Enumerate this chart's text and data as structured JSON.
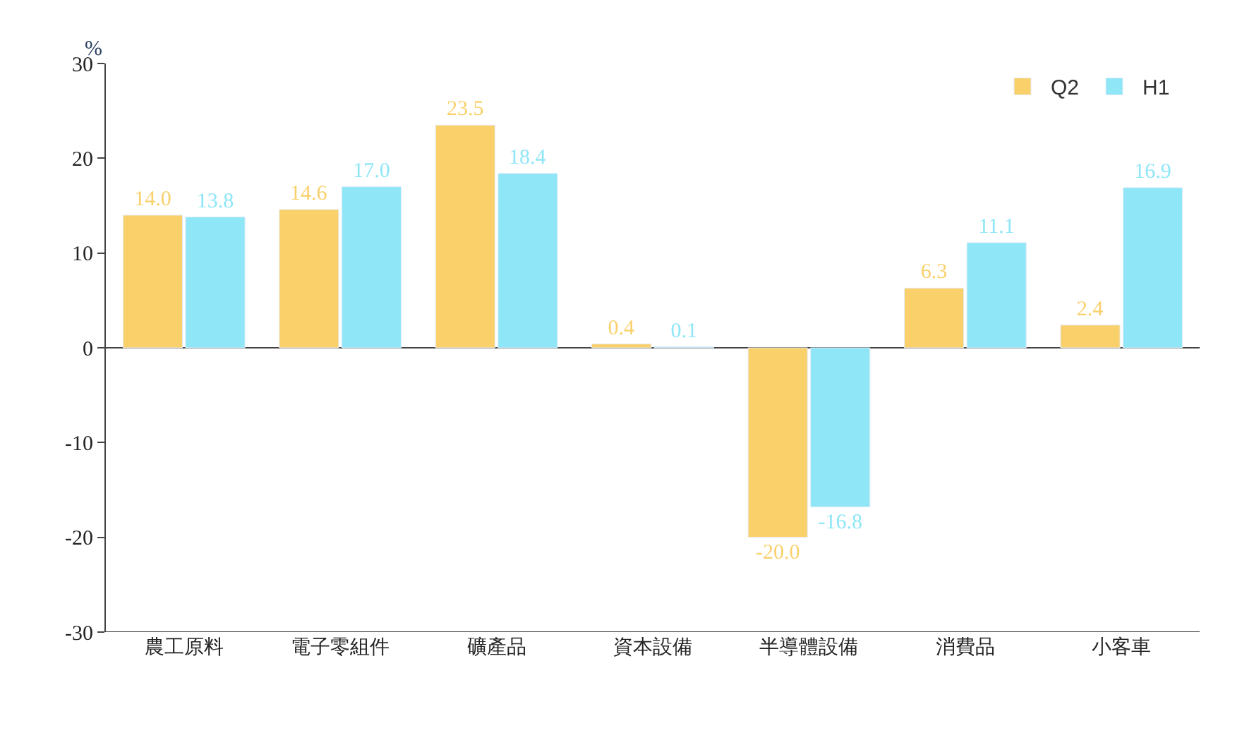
{
  "chart_data": {
    "type": "bar",
    "ylabel": "%",
    "categories": [
      "農工原料",
      "電子零組件",
      "礦產品",
      "資本設備",
      "半導體設備",
      "消費品",
      "小客車"
    ],
    "series": [
      {
        "name": "Q2",
        "color": "#f9d06a",
        "values": [
          14.0,
          14.6,
          23.5,
          0.4,
          -20.0,
          6.3,
          2.4
        ],
        "value_labels": [
          "14.0",
          "14.6",
          "23.5",
          "0.4",
          "-20.0",
          "6.3",
          "2.4"
        ]
      },
      {
        "name": "H1",
        "color": "#8ee6f7",
        "values": [
          13.8,
          17.0,
          18.4,
          0.1,
          -16.8,
          11.1,
          16.9
        ],
        "value_labels": [
          "13.8",
          "17.0",
          "18.4",
          "0.1",
          "-16.8",
          "11.1",
          "16.9"
        ]
      }
    ],
    "ylim": [
      -30,
      30
    ],
    "yticks": [
      -30,
      -20,
      -10,
      0,
      10,
      20,
      30
    ],
    "legend": "top right"
  }
}
